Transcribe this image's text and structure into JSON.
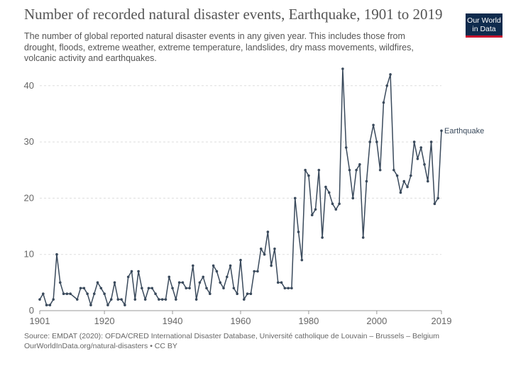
{
  "header": {
    "title": "Number of recorded natural disaster events, Earthquake, 1901 to 2019",
    "subtitle": "The number of global reported natural disaster events in any given year. This includes those from drought, floods, extreme weather, extreme temperature, landslides, dry mass movements, wildfires, volcanic activity and earthquakes.",
    "logo_line1": "Our World",
    "logo_line2": "in Data"
  },
  "footer": {
    "source": "Source: EMDAT (2020): OFDA/CRED International Disaster Database, Université catholique de Louvain – Brussels – Belgium",
    "license": "OurWorldInData.org/natural-disasters • CC BY"
  },
  "colors": {
    "series": "#3a4a5c",
    "grid": "#dddddd",
    "axis_text": "#666666",
    "logo_bg": "#0f2b4d",
    "logo_accent": "#c8102e"
  },
  "chart_data": {
    "type": "line",
    "title": "Number of recorded natural disaster events, Earthquake, 1901 to 2019",
    "xlabel": "",
    "ylabel": "",
    "xlim": [
      1901,
      2019
    ],
    "ylim": [
      0,
      43
    ],
    "x_ticks": [
      1901,
      1920,
      1940,
      1960,
      1980,
      2000,
      2019
    ],
    "y_ticks": [
      0,
      10,
      20,
      30,
      40
    ],
    "grid": "horizontal dashed",
    "legend": "label at end of line",
    "series": [
      {
        "name": "Earthquake",
        "color": "#3a4a5c",
        "points": [
          [
            1901,
            2
          ],
          [
            1902,
            3
          ],
          [
            1903,
            1
          ],
          [
            1904,
            1
          ],
          [
            1905,
            2
          ],
          [
            1906,
            10
          ],
          [
            1907,
            5
          ],
          [
            1908,
            3
          ],
          [
            1909,
            3
          ],
          [
            1910,
            3
          ],
          [
            1912,
            2
          ],
          [
            1913,
            4
          ],
          [
            1914,
            4
          ],
          [
            1915,
            3
          ],
          [
            1916,
            1
          ],
          [
            1917,
            3
          ],
          [
            1918,
            5
          ],
          [
            1919,
            4
          ],
          [
            1920,
            3
          ],
          [
            1921,
            1
          ],
          [
            1922,
            2
          ],
          [
            1923,
            5
          ],
          [
            1924,
            2
          ],
          [
            1925,
            2
          ],
          [
            1926,
            1
          ],
          [
            1927,
            6
          ],
          [
            1928,
            7
          ],
          [
            1929,
            2
          ],
          [
            1930,
            7
          ],
          [
            1931,
            4
          ],
          [
            1932,
            2
          ],
          [
            1933,
            4
          ],
          [
            1934,
            4
          ],
          [
            1935,
            3
          ],
          [
            1936,
            2
          ],
          [
            1937,
            2
          ],
          [
            1938,
            2
          ],
          [
            1939,
            6
          ],
          [
            1940,
            4
          ],
          [
            1941,
            2
          ],
          [
            1942,
            5
          ],
          [
            1943,
            5
          ],
          [
            1944,
            4
          ],
          [
            1945,
            4
          ],
          [
            1946,
            8
          ],
          [
            1947,
            2
          ],
          [
            1948,
            5
          ],
          [
            1949,
            6
          ],
          [
            1950,
            4
          ],
          [
            1951,
            3
          ],
          [
            1952,
            8
          ],
          [
            1953,
            7
          ],
          [
            1954,
            5
          ],
          [
            1955,
            4
          ],
          [
            1956,
            6
          ],
          [
            1957,
            8
          ],
          [
            1958,
            4
          ],
          [
            1959,
            3
          ],
          [
            1960,
            9
          ],
          [
            1961,
            2
          ],
          [
            1962,
            3
          ],
          [
            1963,
            3
          ],
          [
            1964,
            7
          ],
          [
            1965,
            7
          ],
          [
            1966,
            11
          ],
          [
            1967,
            10
          ],
          [
            1968,
            14
          ],
          [
            1969,
            8
          ],
          [
            1970,
            11
          ],
          [
            1971,
            5
          ],
          [
            1972,
            5
          ],
          [
            1973,
            4
          ],
          [
            1974,
            4
          ],
          [
            1975,
            4
          ],
          [
            1976,
            20
          ],
          [
            1977,
            14
          ],
          [
            1978,
            9
          ],
          [
            1979,
            25
          ],
          [
            1980,
            24
          ],
          [
            1981,
            17
          ],
          [
            1982,
            18
          ],
          [
            1983,
            25
          ],
          [
            1984,
            13
          ],
          [
            1985,
            22
          ],
          [
            1986,
            21
          ],
          [
            1987,
            19
          ],
          [
            1988,
            18
          ],
          [
            1989,
            19
          ],
          [
            1990,
            43
          ],
          [
            1991,
            29
          ],
          [
            1992,
            25
          ],
          [
            1993,
            20
          ],
          [
            1994,
            25
          ],
          [
            1995,
            26
          ],
          [
            1996,
            13
          ],
          [
            1997,
            23
          ],
          [
            1998,
            30
          ],
          [
            1999,
            33
          ],
          [
            2000,
            30
          ],
          [
            2001,
            25
          ],
          [
            2002,
            37
          ],
          [
            2003,
            40
          ],
          [
            2004,
            42
          ],
          [
            2005,
            25
          ],
          [
            2006,
            24
          ],
          [
            2007,
            21
          ],
          [
            2008,
            23
          ],
          [
            2009,
            22
          ],
          [
            2010,
            24
          ],
          [
            2011,
            30
          ],
          [
            2012,
            27
          ],
          [
            2013,
            29
          ],
          [
            2014,
            26
          ],
          [
            2015,
            23
          ],
          [
            2016,
            30
          ],
          [
            2017,
            19
          ],
          [
            2018,
            20
          ],
          [
            2019,
            32
          ]
        ]
      }
    ]
  }
}
